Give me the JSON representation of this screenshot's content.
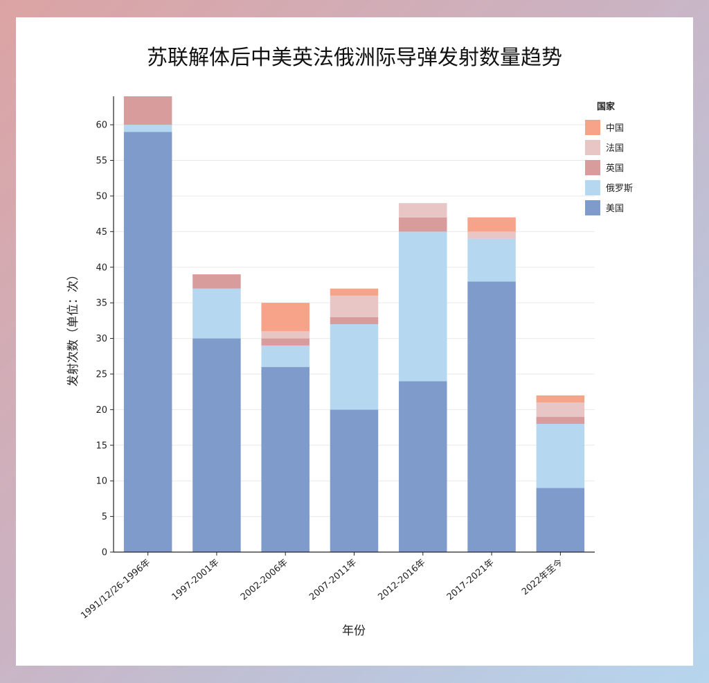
{
  "chart_data": {
    "type": "bar",
    "stacked": true,
    "title": "苏联解体后中美英法俄洲际导弹发射数量趋势",
    "xlabel": "年份",
    "ylabel": "发射次数（单位：次）",
    "ylim": [
      0,
      64
    ],
    "yticks": [
      0,
      5,
      10,
      15,
      20,
      25,
      30,
      35,
      40,
      45,
      50,
      55,
      60
    ],
    "grid": true,
    "legend_position": "top-right",
    "legend_title": "国家",
    "categories": [
      "1991/12/26-1996年",
      "1997-2001年",
      "2002-2006年",
      "2007-2011年",
      "2012-2016年",
      "2017-2021年",
      "2022年至今"
    ],
    "series": [
      {
        "name": "美国",
        "color": "#7f9bcb",
        "values": [
          59,
          30,
          26,
          20,
          24,
          38,
          9
        ]
      },
      {
        "name": "俄罗斯",
        "color": "#b5d8f0",
        "values": [
          1,
          7,
          3,
          12,
          21,
          6,
          9
        ]
      },
      {
        "name": "英国",
        "color": "#d89c9c",
        "values": [
          4,
          2,
          1,
          1,
          2,
          0,
          1
        ]
      },
      {
        "name": "法国",
        "color": "#e8c6c6",
        "values": [
          0,
          0,
          1,
          3,
          2,
          1,
          2
        ]
      },
      {
        "name": "中国",
        "color": "#f6a38a",
        "values": [
          0,
          0,
          4,
          1,
          0,
          2,
          1
        ]
      }
    ],
    "legend_order": [
      "中国",
      "法国",
      "英国",
      "俄罗斯",
      "美国"
    ]
  }
}
